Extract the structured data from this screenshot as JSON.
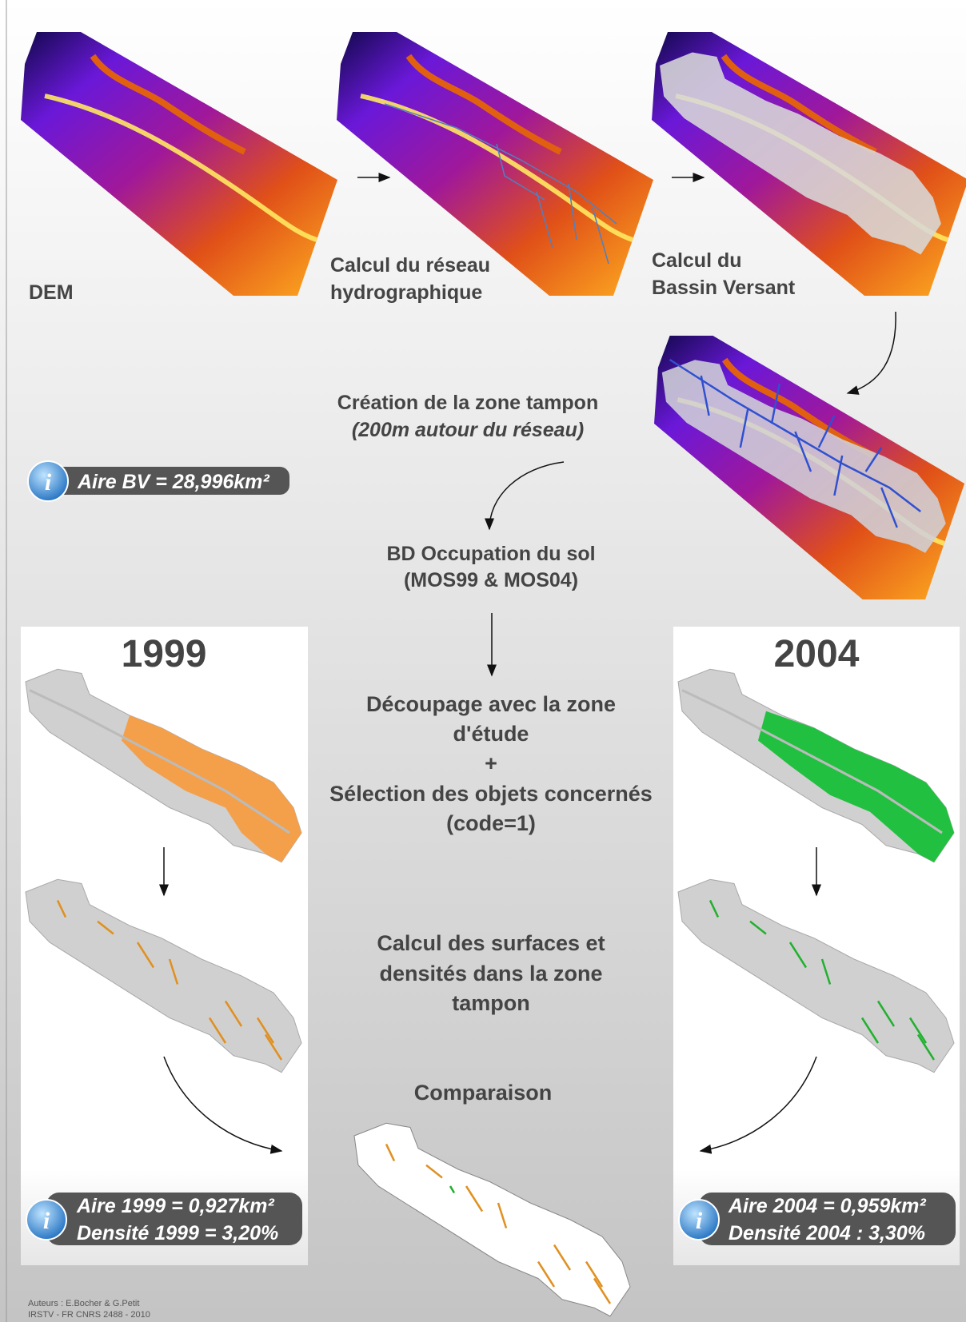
{
  "steps": {
    "dem": "DEM",
    "network": [
      "Calcul du réseau",
      "hydrographique"
    ],
    "basin": [
      "Calcul du",
      "Bassin Versant"
    ],
    "buffer": [
      "Création de la zone tampon",
      "(200m autour du réseau)"
    ],
    "landuse": [
      "BD Occupation du sol",
      "(MOS99 & MOS04)"
    ],
    "clip": [
      "Découpage avec la zone",
      "d'étude",
      "+",
      "Sélection des objets concernés",
      "(code=1)"
    ],
    "compute": [
      "Calcul des surfaces et",
      "densités dans la zone",
      "tampon"
    ],
    "compare": "Comparaison"
  },
  "info_bv": "Aire BV = 28,996km²",
  "panels": [
    {
      "year": "1999",
      "info": [
        "Aire 1999 = 0,927km²",
        "Densité 1999 = 3,20%"
      ]
    },
    {
      "year": "2004",
      "info": [
        "Aire 2004 = 0,959km²",
        "Densité 2004 : 3,30%"
      ]
    }
  ],
  "credits": [
    "Auteurs : E.Bocher & G.Petit",
    "IRSTV - FR CNRS 2488 - 2010"
  ]
}
